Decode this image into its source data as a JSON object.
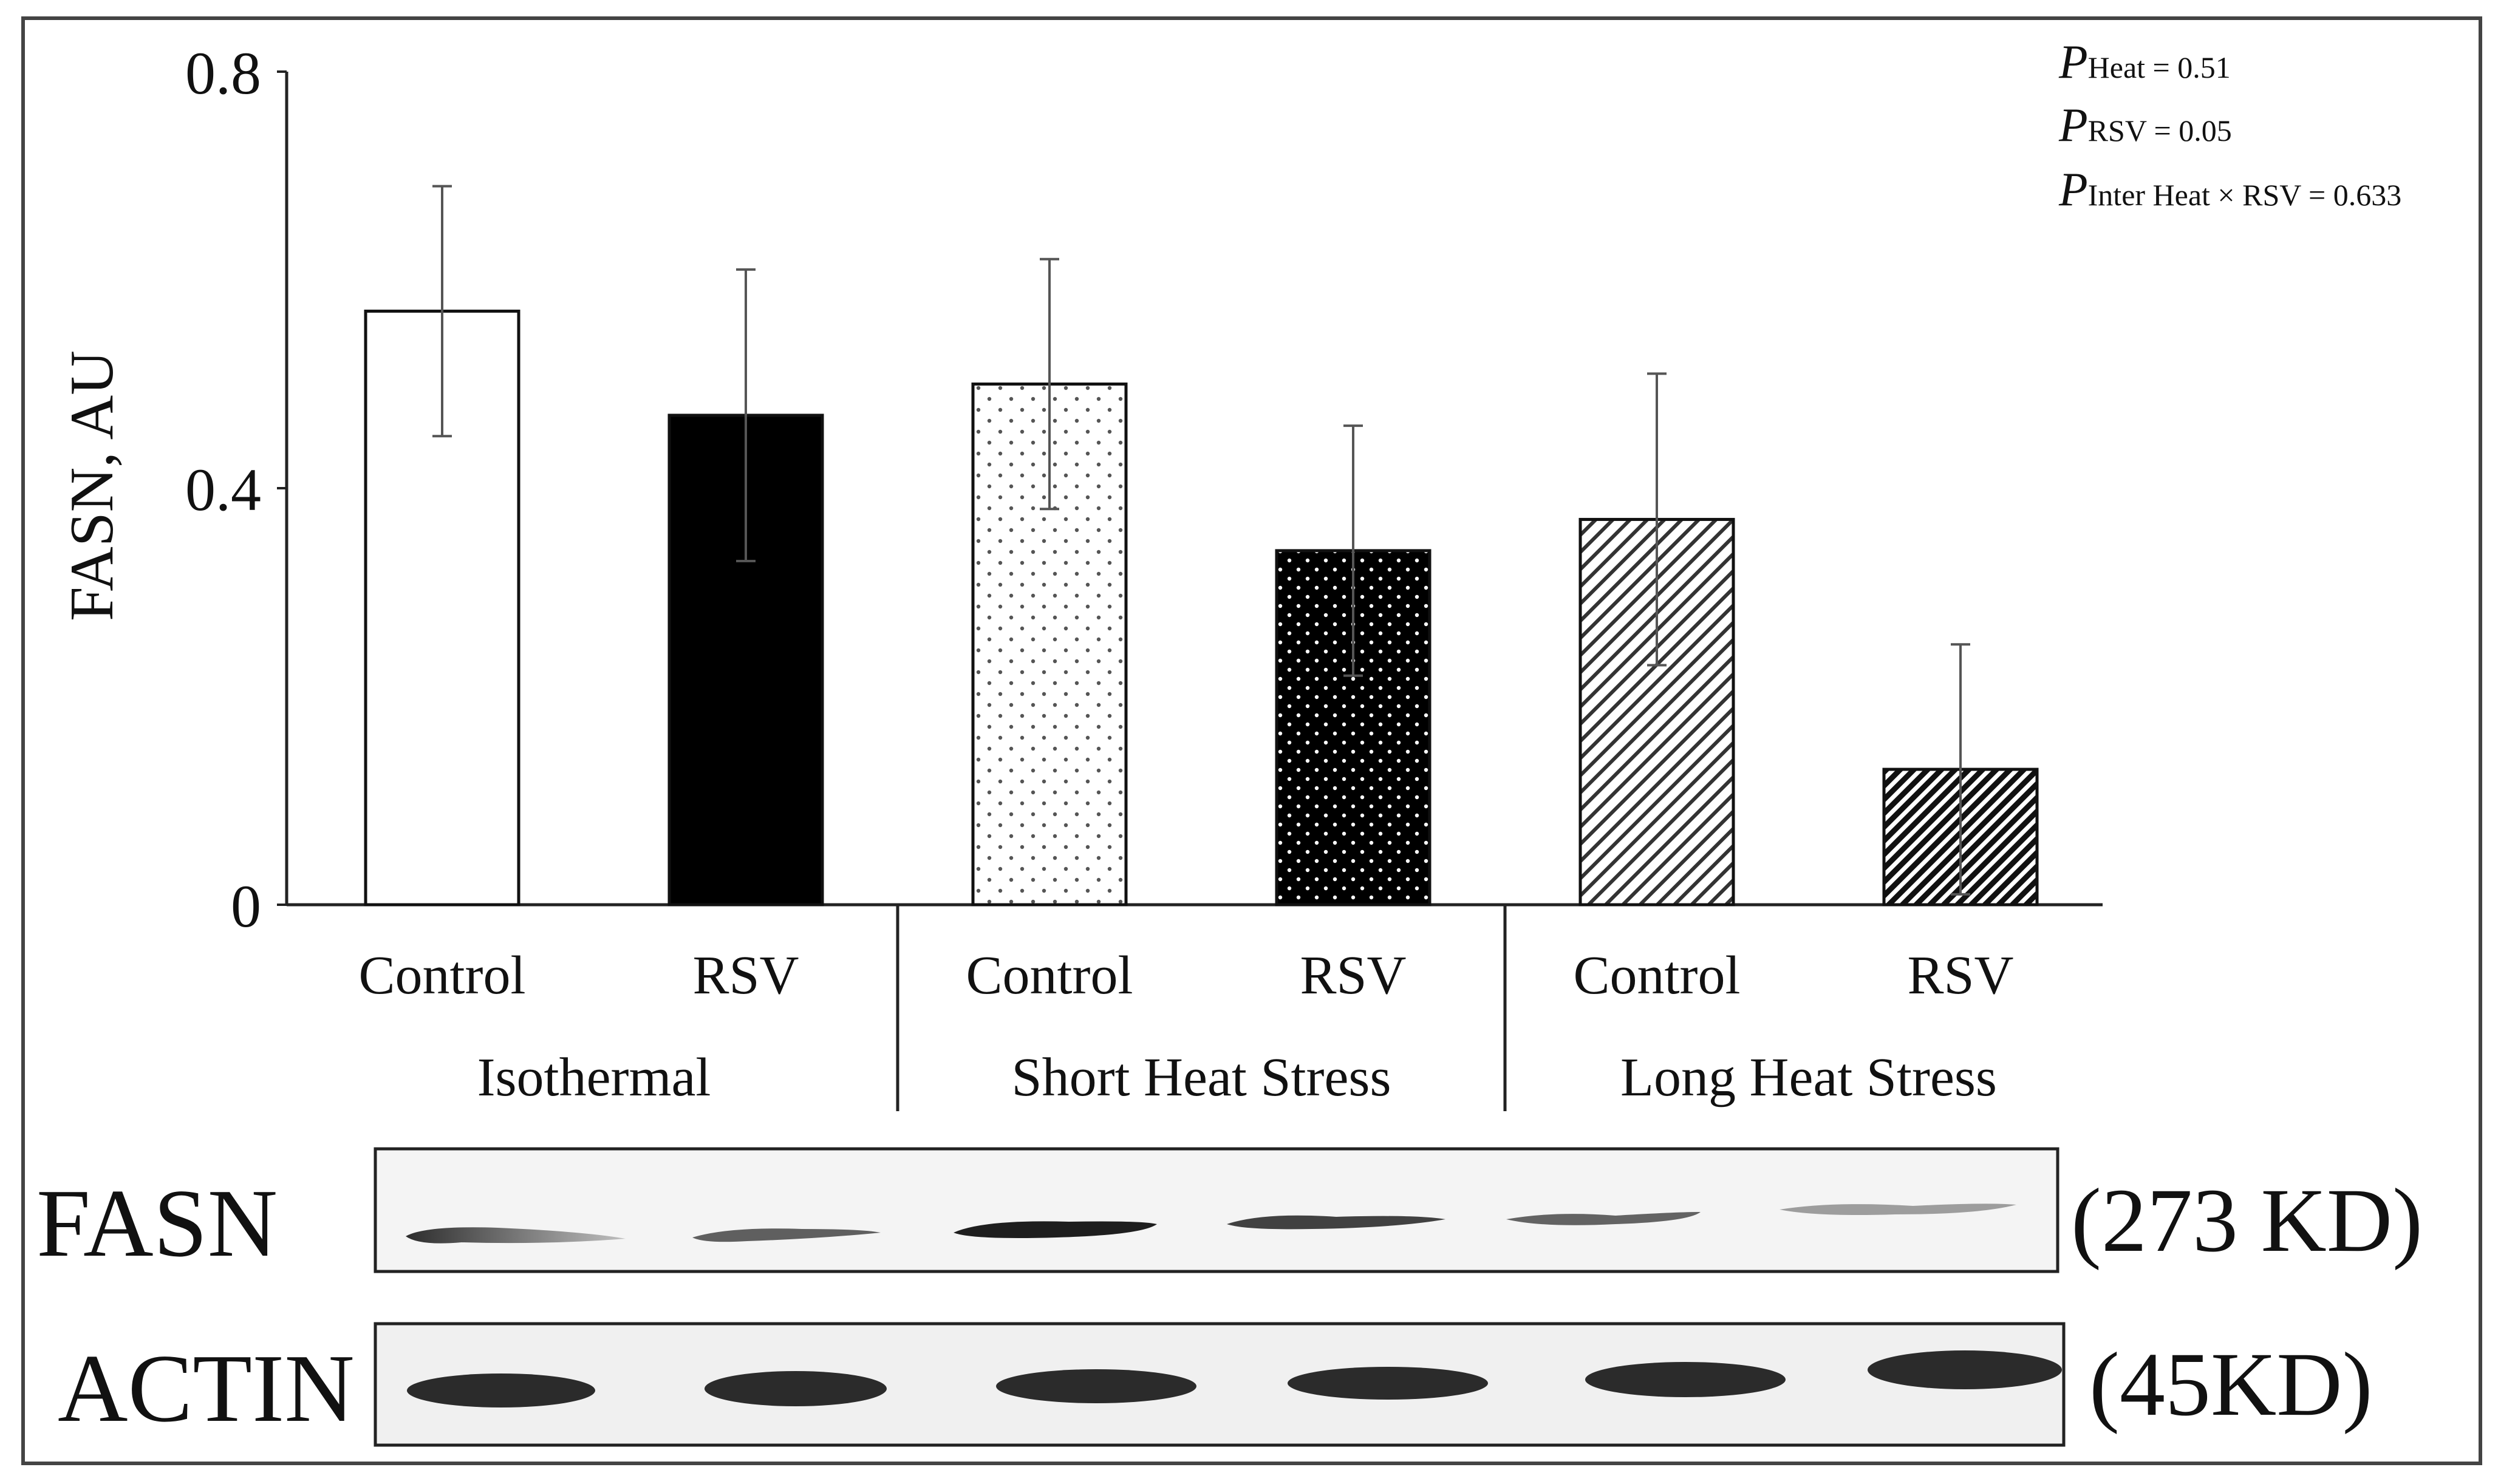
{
  "chart_data": {
    "type": "bar",
    "ylabel": "FASN, AU",
    "ylim": [
      0,
      0.8
    ],
    "yticks": [
      {
        "value": 0,
        "label": "0"
      },
      {
        "value": 0.4,
        "label": "0.4"
      },
      {
        "value": 0.8,
        "label": "0.8"
      }
    ],
    "categories": [
      "Control",
      "RSV",
      "Control",
      "RSV",
      "Control",
      "RSV"
    ],
    "groups": [
      "Isothermal",
      "Short Heat Stress",
      "Long Heat Stress"
    ],
    "values": [
      0.57,
      0.47,
      0.5,
      0.34,
      0.37,
      0.13
    ],
    "errors": [
      0.12,
      0.14,
      0.12,
      0.12,
      0.14,
      0.12
    ],
    "fills": [
      "white",
      "solid-black",
      "sparse-dots",
      "dense-dots",
      "light-hatch",
      "dark-hatch"
    ],
    "stats": [
      {
        "p": "P",
        "sub": "Heat",
        "text": " = 0.51"
      },
      {
        "p": "P",
        "sub": "RSV",
        "text": "  = 0.05"
      },
      {
        "p": "P",
        "sub": "Inter Heat × RSV",
        "text": "  = 0.633"
      }
    ]
  },
  "blots": [
    {
      "name": "FASN",
      "size": "(273 KD)"
    },
    {
      "name": "ACTIN",
      "size": "(45KD)"
    }
  ],
  "colors": {
    "axis": "#222222",
    "bar_dark": "#000000",
    "outer_border": "#444444"
  }
}
